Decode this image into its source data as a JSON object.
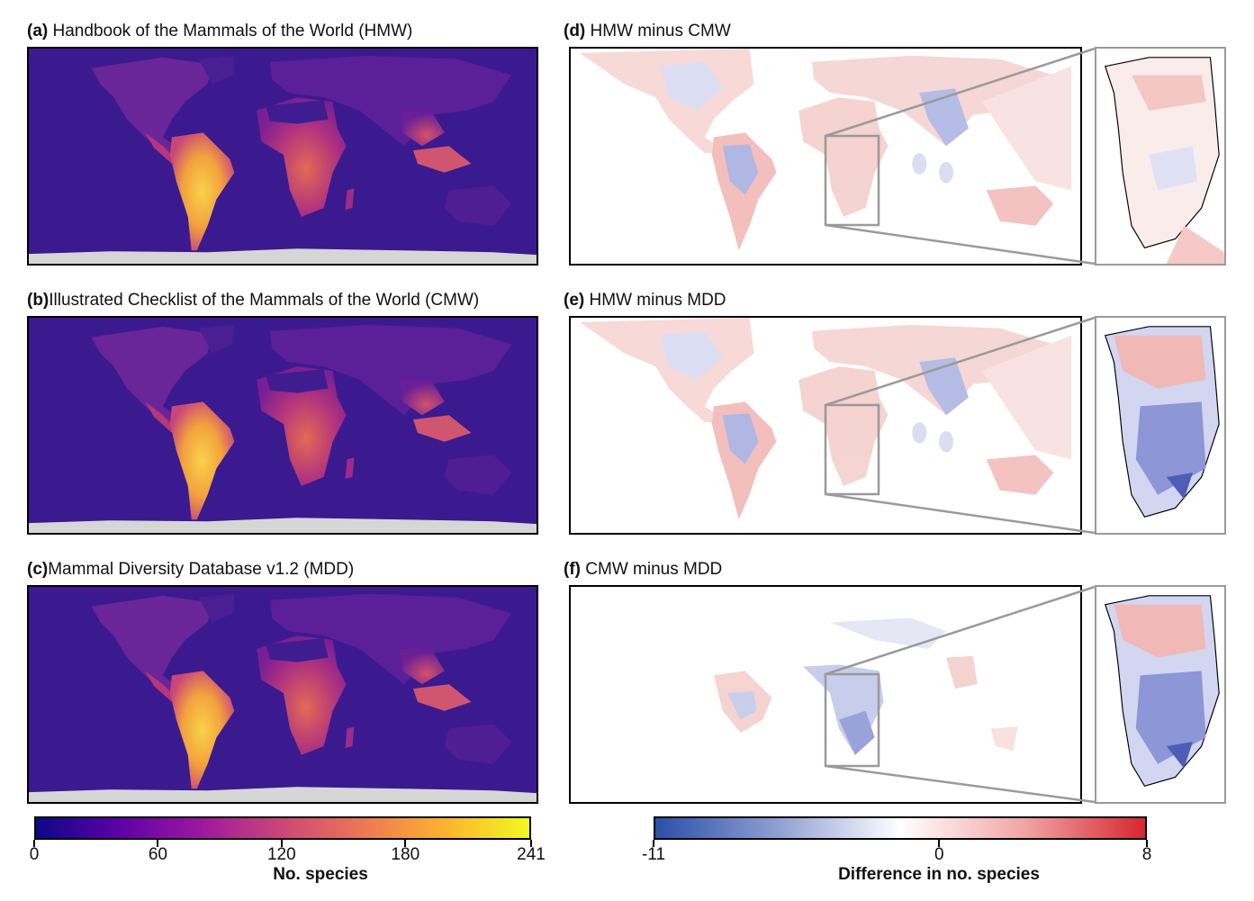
{
  "panels_left": [
    {
      "letter": "(a)",
      "title": "Handbook of the Mammals of the World (HMW)"
    },
    {
      "letter": "(b)",
      "title": "Illustrated Checklist of the Mammals of the World (CMW)"
    },
    {
      "letter": "(c)",
      "title": "Mammal Diversity Database v1.2 (MDD)"
    }
  ],
  "panels_right": [
    {
      "letter": "(d)",
      "title": "HMW minus CMW"
    },
    {
      "letter": "(e)",
      "title": "HMW minus MDD"
    },
    {
      "letter": "(f)",
      "title": "CMW minus MDD"
    }
  ],
  "colorbar_left": {
    "ticks": [
      "0",
      "60",
      "120",
      "180",
      "241"
    ],
    "min": 0,
    "max": 241,
    "tick_values": [
      0,
      60,
      120,
      180,
      241
    ],
    "label": "No. species",
    "colors": [
      "#0d0887",
      "#5c01a6",
      "#9c179e",
      "#cc4778",
      "#ed7953",
      "#fdb42f",
      "#f0f921"
    ]
  },
  "colorbar_right": {
    "ticks": [
      "-11",
      "0",
      "8"
    ],
    "min": -11,
    "max": 8,
    "tick_values": [
      -11,
      0,
      8
    ],
    "label": "Difference in no. species",
    "colors": [
      "#2b4fa8",
      "#8f9fd3",
      "#ffffff",
      "#f2a6a6",
      "#d6272e"
    ]
  },
  "map_colors": {
    "background": "#3b1a8f",
    "land_low": "#5d1e9a",
    "land_mid": "#b8347a",
    "land_high": "#f09a3e",
    "land_peak": "#f7c443",
    "antarctica": "#d6d6d6",
    "diff_positive": "#f4b7b5",
    "diff_negative": "#b7bde6",
    "inset_border": "#9a9a9a"
  }
}
